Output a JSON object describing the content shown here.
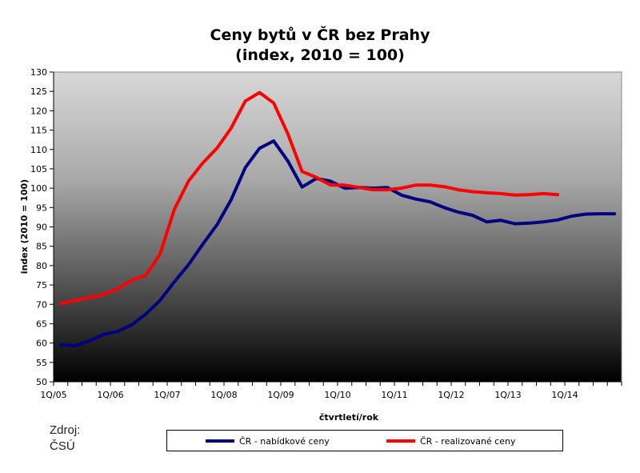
{
  "chart_data": {
    "type": "line",
    "title": [
      "Ceny bytů v ČR bez Prahy",
      "(index, 2010 = 100)"
    ],
    "xlabel": "čtvrtletí/rok",
    "ylabel": "index (2010 = 100)",
    "ylim": [
      50,
      130
    ],
    "yticks": [
      50,
      55,
      60,
      65,
      70,
      75,
      80,
      85,
      90,
      95,
      100,
      105,
      110,
      115,
      120,
      125,
      130
    ],
    "x_tick_labels": [
      "1Q/05",
      "1Q/06",
      "1Q/07",
      "1Q/08",
      "1Q/09",
      "1Q/10",
      "1Q/11",
      "1Q/12",
      "1Q/13",
      "1Q/14"
    ],
    "x_count": 40,
    "grid": false,
    "background": "gradient light gray (top) to black (bottom)",
    "legend_position": "bottom",
    "series": [
      {
        "name": "ČR - nabídkové ceny",
        "color": "#000080",
        "values": [
          59.5,
          59.3,
          60.5,
          62.2,
          63.0,
          64.7,
          67.5,
          71.0,
          75.8,
          80.2,
          85.5,
          90.5,
          97.0,
          105.3,
          110.3,
          112.2,
          107.0,
          100.3,
          102.5,
          101.8,
          100.0,
          100.2,
          100.0,
          100.2,
          98.2,
          97.2,
          96.5,
          95.0,
          93.8,
          93.0,
          91.3,
          91.7,
          90.8,
          91.0,
          91.3,
          91.8,
          92.8,
          93.3,
          93.4,
          93.4
        ]
      },
      {
        "name": "ČR - realizované ceny",
        "color": "#ff0000",
        "values": [
          70.2,
          71.0,
          71.7,
          72.5,
          74.0,
          76.2,
          77.5,
          83.0,
          94.5,
          101.8,
          106.5,
          110.3,
          115.5,
          122.5,
          124.7,
          122.0,
          114.0,
          104.3,
          102.8,
          100.8,
          100.8,
          100.2,
          99.6,
          99.6,
          100.0,
          100.8,
          100.8,
          100.4,
          99.6,
          99.1,
          98.8,
          98.6,
          98.2,
          98.3,
          98.6,
          98.3
        ]
      }
    ]
  },
  "source": {
    "line1": "Zdroj:",
    "line2": "ČSÚ"
  }
}
